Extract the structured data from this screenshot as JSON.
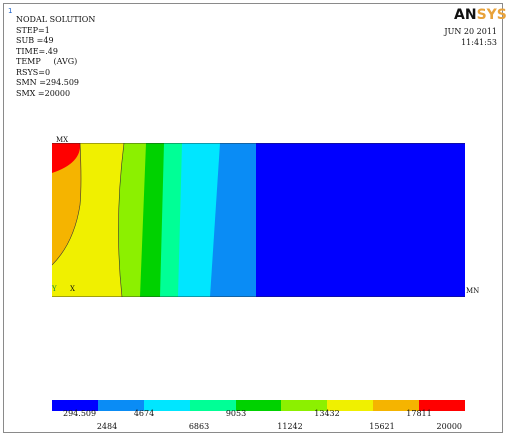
{
  "header": {
    "corner_mark": "1",
    "title": "NODAL SOLUTION",
    "lines": [
      "STEP=1",
      "SUB =49",
      "TIME=.49",
      "TEMP     (AVG)",
      "RSYS=0",
      "SMN =294.509",
      "SMX =20000"
    ],
    "logo_primary": "AN",
    "logo_secondary": "SYS",
    "date": "JUN 20 2011",
    "time": "11:41:53"
  },
  "plot": {
    "mx_label": "MX",
    "mn_label": "MN",
    "axis_y_label": "Y",
    "axis_x_label": "X"
  },
  "legend": {
    "colors": [
      "#0000ff",
      "#0a8cf5",
      "#00e6ff",
      "#00ff96",
      "#00d200",
      "#8cf000",
      "#f0f000",
      "#f5b400",
      "#ff0000"
    ],
    "top_values": [
      "294.509",
      "4674",
      "9053",
      "13432",
      "17811"
    ],
    "bottom_values": [
      "2484",
      "6863",
      "11242",
      "15621",
      "20000"
    ]
  }
}
